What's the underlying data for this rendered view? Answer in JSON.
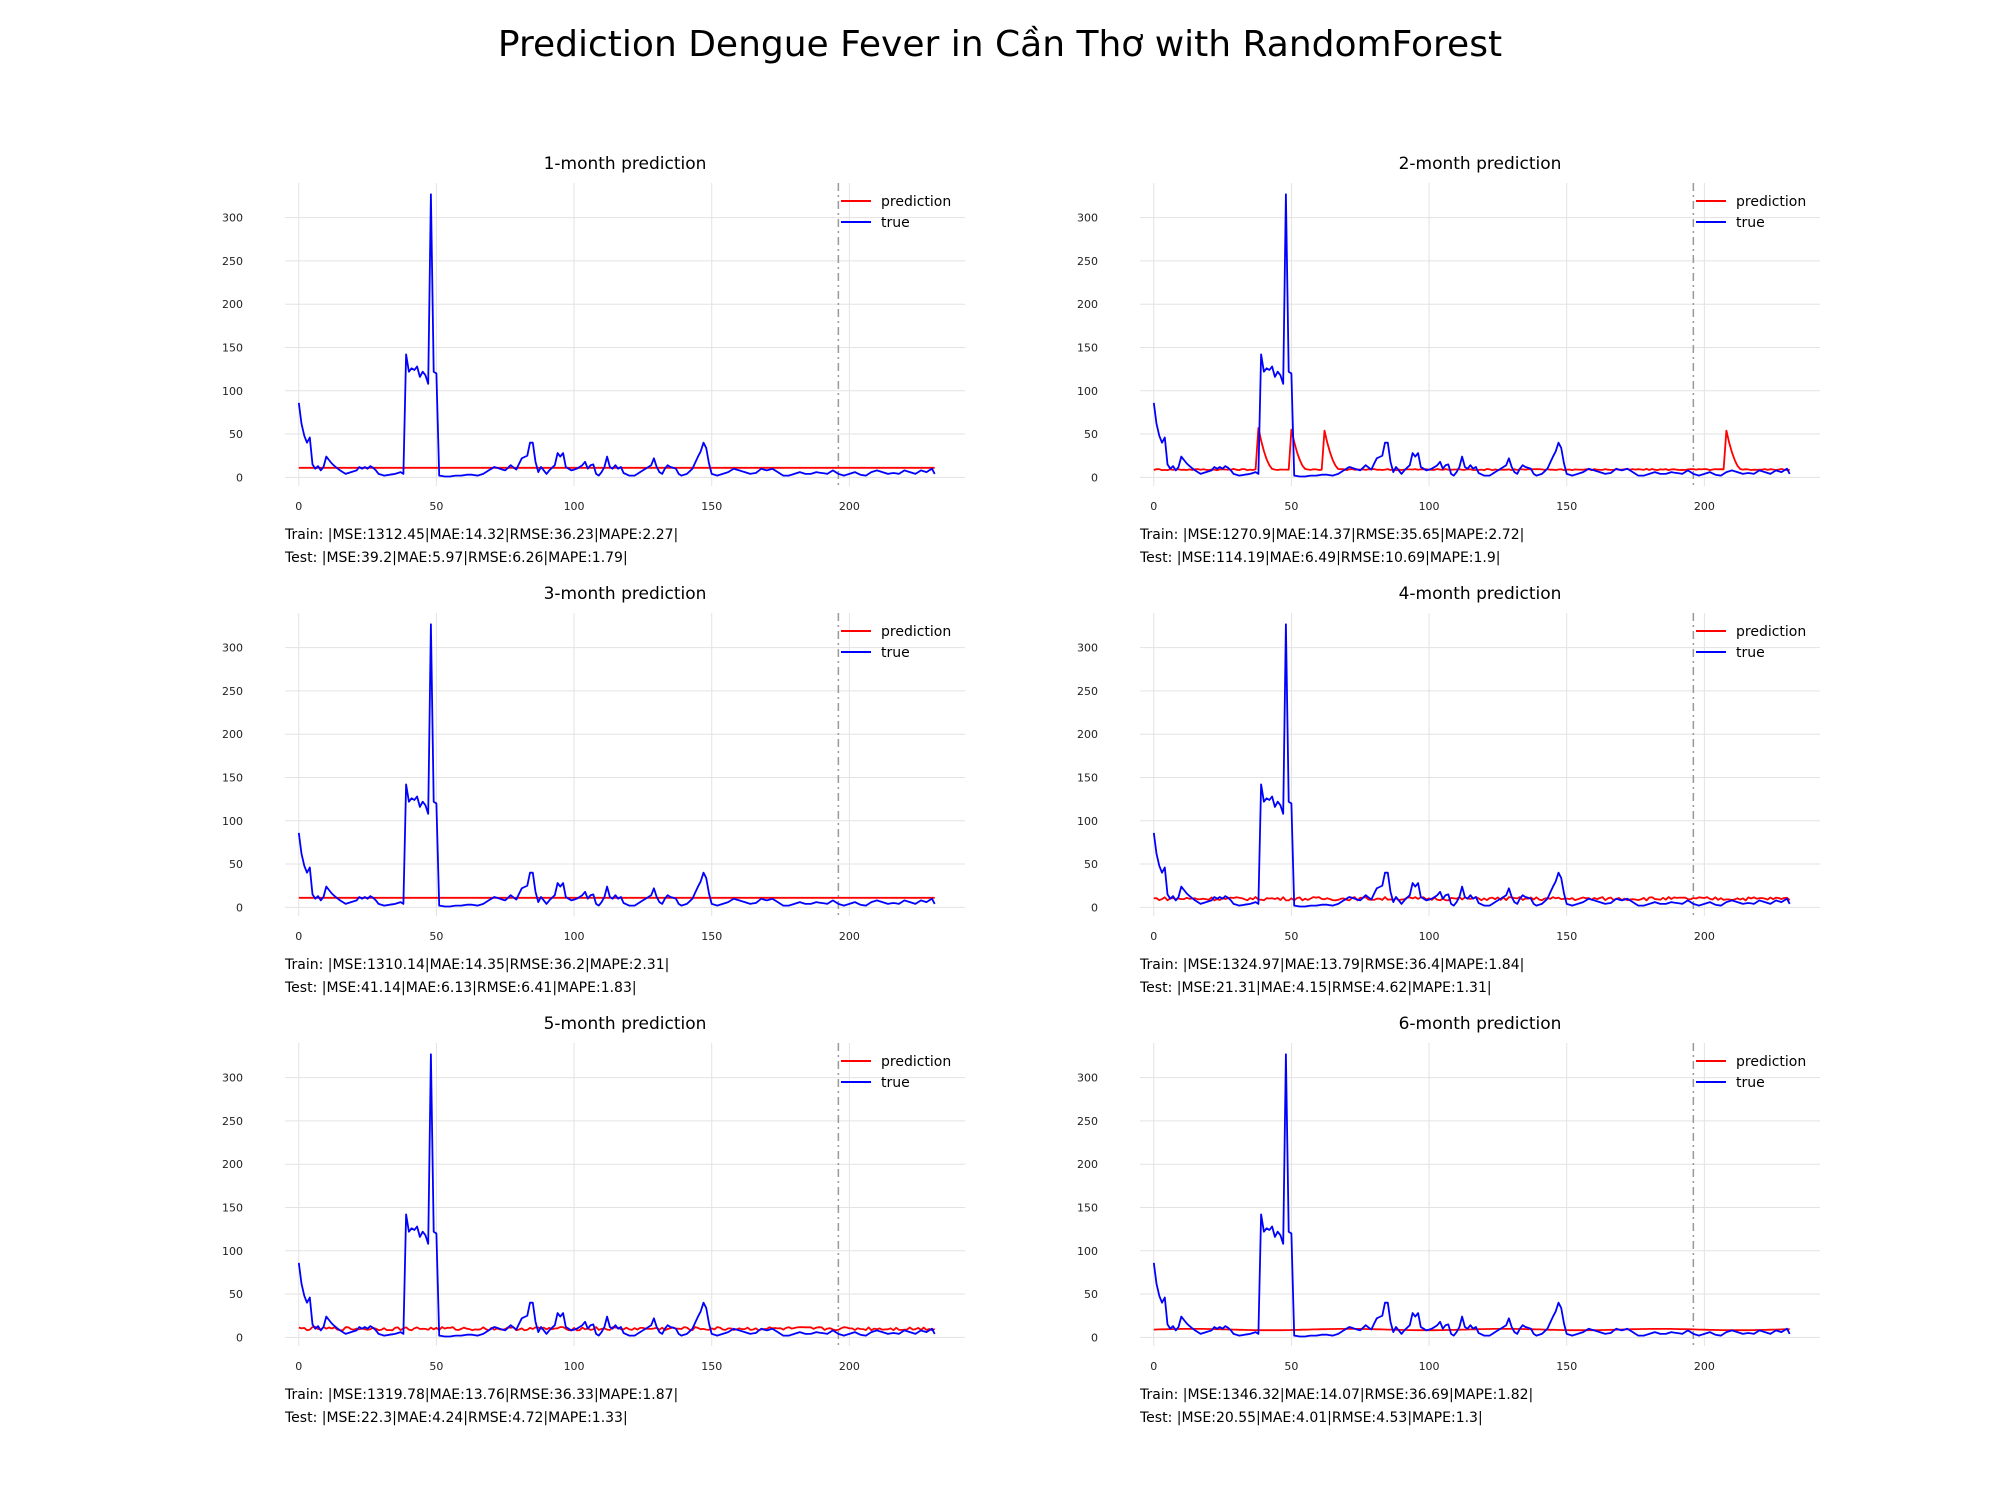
{
  "title": "Prediction Dengue Fever in Cần Thơ with RandomForest",
  "colors": {
    "prediction": "#ff0000",
    "true": "#0000ff",
    "grid": "#e3e3e3",
    "split": "#999999"
  },
  "chart_data": [
    {
      "type": "line",
      "title": "1-month prediction",
      "xticks": [
        0,
        50,
        100,
        150,
        200
      ],
      "yticks": [
        0,
        50,
        100,
        150,
        200,
        250,
        300
      ],
      "xlim": [
        -5,
        242
      ],
      "ylim": [
        -10,
        340
      ],
      "split_x": 196,
      "legend": "top-right",
      "series": [
        {
          "name": "prediction",
          "color": "#ff0000",
          "shape": "flat",
          "base": 11,
          "spikes": []
        },
        {
          "name": "true",
          "color": "#0000ff",
          "shape": "dengue_true"
        }
      ],
      "train_text": "Train: |MSE:1312.45|MAE:14.32|RMSE:36.23|MAPE:2.27|",
      "test_text": "Test: |MSE:39.2|MAE:5.97|RMSE:6.26|MAPE:1.79|"
    },
    {
      "type": "line",
      "title": "2-month prediction",
      "xticks": [
        0,
        50,
        100,
        150,
        200
      ],
      "yticks": [
        0,
        50,
        100,
        150,
        200,
        250,
        300
      ],
      "xlim": [
        -5,
        242
      ],
      "ylim": [
        -10,
        340
      ],
      "split_x": 196,
      "legend": "top-right",
      "series": [
        {
          "name": "prediction",
          "color": "#ff0000",
          "shape": "spiky",
          "base": 9,
          "spikes": [
            [
              38,
              57
            ],
            [
              50,
              55
            ],
            [
              62,
              54
            ],
            [
              208,
              54
            ]
          ]
        },
        {
          "name": "true",
          "color": "#0000ff",
          "shape": "dengue_true"
        }
      ],
      "train_text": "Train: |MSE:1270.9|MAE:14.37|RMSE:35.65|MAPE:2.72|",
      "test_text": "Test: |MSE:114.19|MAE:6.49|RMSE:10.69|MAPE:1.9|"
    },
    {
      "type": "line",
      "title": "3-month prediction",
      "xticks": [
        0,
        50,
        100,
        150,
        200
      ],
      "yticks": [
        0,
        50,
        100,
        150,
        200,
        250,
        300
      ],
      "xlim": [
        -5,
        242
      ],
      "ylim": [
        -10,
        340
      ],
      "split_x": 196,
      "legend": "top-right",
      "series": [
        {
          "name": "prediction",
          "color": "#ff0000",
          "shape": "flat",
          "base": 11,
          "spikes": []
        },
        {
          "name": "true",
          "color": "#0000ff",
          "shape": "dengue_true"
        }
      ],
      "train_text": "Train: |MSE:1310.14|MAE:14.35|RMSE:36.2|MAPE:2.31|",
      "test_text": "Test: |MSE:41.14|MAE:6.13|RMSE:6.41|MAPE:1.83|"
    },
    {
      "type": "line",
      "title": "4-month prediction",
      "xticks": [
        0,
        50,
        100,
        150,
        200
      ],
      "yticks": [
        0,
        50,
        100,
        150,
        200,
        250,
        300
      ],
      "xlim": [
        -5,
        242
      ],
      "ylim": [
        -10,
        340
      ],
      "split_x": 196,
      "legend": "top-right",
      "series": [
        {
          "name": "prediction",
          "color": "#ff0000",
          "shape": "noisy",
          "base": 10,
          "spikes": []
        },
        {
          "name": "true",
          "color": "#0000ff",
          "shape": "dengue_true"
        }
      ],
      "train_text": "Train: |MSE:1324.97|MAE:13.79|RMSE:36.4|MAPE:1.84|",
      "test_text": "Test: |MSE:21.31|MAE:4.15|RMSE:4.62|MAPE:1.31|"
    },
    {
      "type": "line",
      "title": "5-month prediction",
      "xticks": [
        0,
        50,
        100,
        150,
        200
      ],
      "yticks": [
        0,
        50,
        100,
        150,
        200,
        250,
        300
      ],
      "xlim": [
        -5,
        242
      ],
      "ylim": [
        -10,
        340
      ],
      "split_x": 196,
      "legend": "top-right",
      "series": [
        {
          "name": "prediction",
          "color": "#ff0000",
          "shape": "noisy",
          "base": 10,
          "spikes": []
        },
        {
          "name": "true",
          "color": "#0000ff",
          "shape": "dengue_true"
        }
      ],
      "train_text": "Train: |MSE:1319.78|MAE:13.76|RMSE:36.33|MAPE:1.87|",
      "test_text": "Test: |MSE:22.3|MAE:4.24|RMSE:4.72|MAPE:1.33|"
    },
    {
      "type": "line",
      "title": "6-month prediction",
      "xticks": [
        0,
        50,
        100,
        150,
        200
      ],
      "yticks": [
        0,
        50,
        100,
        150,
        200,
        250,
        300
      ],
      "xlim": [
        -5,
        242
      ],
      "ylim": [
        -10,
        340
      ],
      "split_x": 196,
      "legend": "top-right",
      "series": [
        {
          "name": "prediction",
          "color": "#ff0000",
          "shape": "smooth",
          "base": 9,
          "spikes": []
        },
        {
          "name": "true",
          "color": "#0000ff",
          "shape": "dengue_true"
        }
      ],
      "train_text": "Train: |MSE:1346.32|MAE:14.07|RMSE:36.69|MAPE:1.82|",
      "test_text": "Test: |MSE:20.55|MAE:4.01|RMSE:4.53|MAPE:1.3|"
    }
  ]
}
